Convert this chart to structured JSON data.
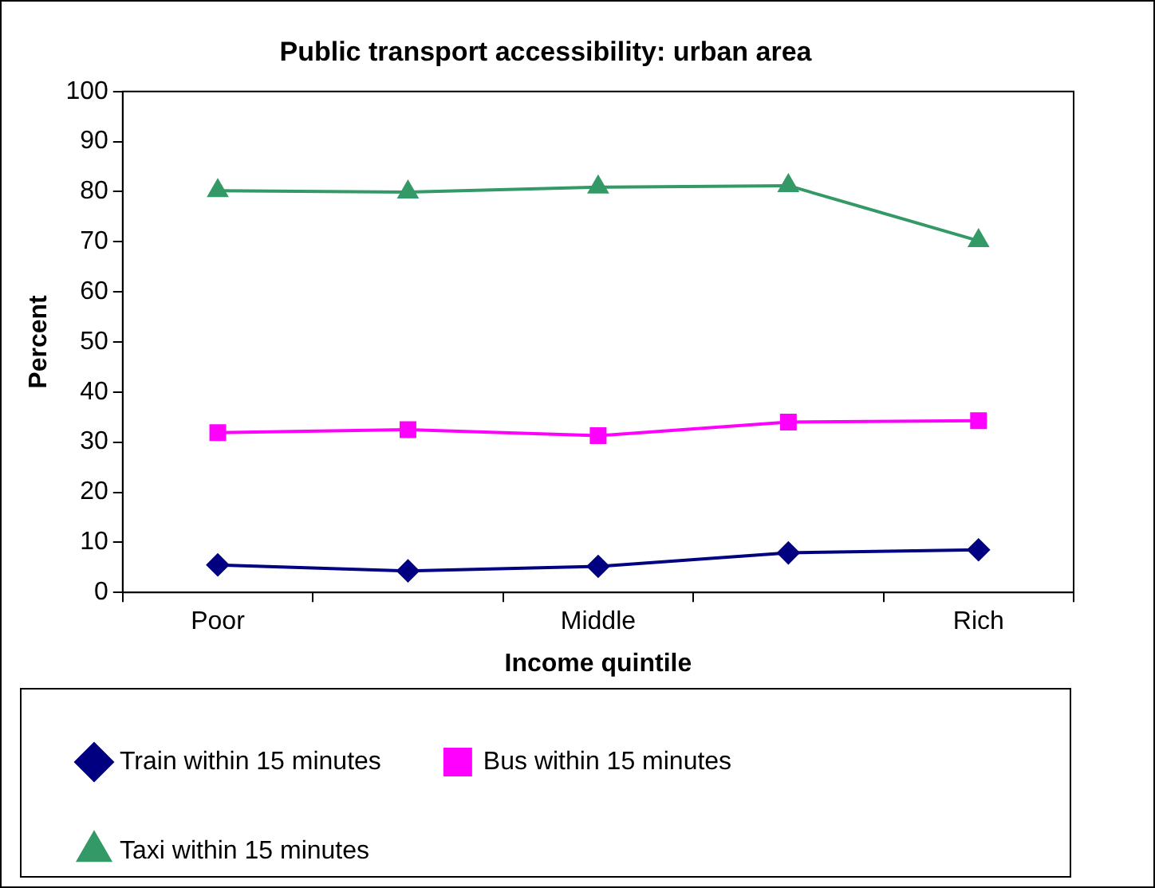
{
  "chart_data": {
    "type": "line",
    "title": "Public transport accessibility: urban area",
    "xlabel": "Income quintile",
    "ylabel": "Percent",
    "categories": [
      "Poor",
      null,
      "Middle",
      null,
      "Rich"
    ],
    "series": [
      {
        "name": "Train within 15 minutes",
        "color": "#000080",
        "marker": "diamond",
        "values": [
          5.5,
          4.3,
          5.2,
          7.9,
          8.5
        ]
      },
      {
        "name": "Bus within 15 minutes",
        "color": "#ff00ff",
        "marker": "square",
        "values": [
          31.9,
          32.5,
          31.3,
          34.0,
          34.3
        ]
      },
      {
        "name": "Taxi within 15 minutes",
        "color": "#339966",
        "marker": "triangle",
        "values": [
          80.2,
          79.9,
          80.9,
          81.2,
          70.2
        ]
      }
    ],
    "ylim": [
      0,
      100
    ],
    "yticks": [
      0,
      10,
      20,
      30,
      40,
      50,
      60,
      70,
      80,
      90,
      100
    ],
    "grid": false,
    "legend": "bottom",
    "line_style": "solid"
  }
}
